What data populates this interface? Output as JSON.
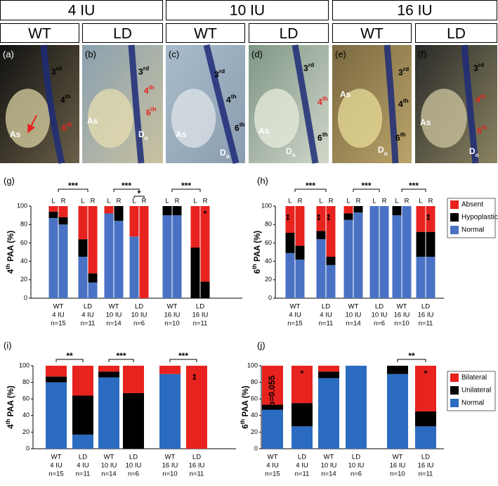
{
  "header": {
    "groups": [
      "4 IU",
      "10 IU",
      "16 IU"
    ],
    "subgroups": [
      "WT",
      "LD",
      "WT",
      "LD",
      "WT",
      "LD"
    ]
  },
  "panels": [
    {
      "letter": "(a)",
      "labels": [
        {
          "text": "3",
          "sup": "rd",
          "color": "#000000"
        },
        {
          "text": "4",
          "sup": "th",
          "color": "#000000"
        },
        {
          "text": "6",
          "sup": "th",
          "color": "#e8231f"
        },
        {
          "text": "As",
          "color": "#ffffff"
        }
      ]
    },
    {
      "letter": "(b)",
      "labels": [
        {
          "text": "3",
          "sup": "rd",
          "color": "#000000"
        },
        {
          "text": "4",
          "sup": "th",
          "color": "#e8231f"
        },
        {
          "text": "6",
          "sup": "th",
          "color": "#e8231f"
        },
        {
          "text": "As",
          "color": "#ffffff"
        },
        {
          "text": "D",
          "sub": "o",
          "color": "#ffffff"
        }
      ]
    },
    {
      "letter": "(c)",
      "labels": [
        {
          "text": "3",
          "sup": "rd",
          "color": "#000000"
        },
        {
          "text": "4",
          "sup": "th",
          "color": "#000000"
        },
        {
          "text": "6",
          "sup": "th",
          "color": "#000000"
        },
        {
          "text": "As",
          "color": "#ffffff"
        },
        {
          "text": "D",
          "sub": "o",
          "color": "#ffffff"
        }
      ]
    },
    {
      "letter": "(d)",
      "labels": [
        {
          "text": "3",
          "sup": "rd",
          "color": "#000000"
        },
        {
          "text": "4",
          "sup": "th",
          "color": "#e8231f"
        },
        {
          "text": "6",
          "sup": "th",
          "color": "#000000"
        },
        {
          "text": "As",
          "color": "#ffffff"
        },
        {
          "text": "D",
          "sub": "o",
          "color": "#ffffff"
        }
      ]
    },
    {
      "letter": "(e)",
      "labels": [
        {
          "text": "3",
          "sup": "rd",
          "color": "#000000"
        },
        {
          "text": "As",
          "color": "#ffffff"
        },
        {
          "text": "4",
          "sup": "th",
          "color": "#000000"
        },
        {
          "text": "6",
          "sup": "th",
          "color": "#000000"
        },
        {
          "text": "D",
          "sub": "o",
          "color": "#ffffff"
        }
      ]
    },
    {
      "letter": "(f)",
      "labels": [
        {
          "text": "3",
          "sup": "rd",
          "color": "#000000"
        },
        {
          "text": "4",
          "sup": "th",
          "color": "#e8231f"
        },
        {
          "text": "6",
          "sup": "th",
          "color": "#e8231f"
        },
        {
          "text": "As",
          "color": "#ffffff"
        },
        {
          "text": "D",
          "sub": "o",
          "color": "#ffffff"
        }
      ]
    }
  ],
  "chart_data": [
    {
      "type": "bar",
      "panel": "(g)",
      "ylabel": {
        "text": "4",
        "sup": "th",
        "rest": " PAA (%)"
      },
      "categories": [
        [
          "WT",
          "4 IU",
          "n=15"
        ],
        [
          "LD",
          "4 IU",
          "n=11"
        ],
        [
          "WT",
          "10 IU",
          "n=14"
        ],
        [
          "LD",
          "10 IU",
          "n=6"
        ],
        [
          "WT",
          "16 IU",
          "n=10"
        ],
        [
          "LD",
          "16 IU",
          "n=11"
        ]
      ],
      "sides": [
        "L",
        "R"
      ],
      "series": [
        {
          "color": "#4a72c4",
          "values": [
            [
              87,
              80
            ],
            [
              45,
              17
            ],
            [
              92,
              84
            ],
            [
              67,
              0
            ],
            [
              90,
              90
            ],
            [
              0,
              0
            ]
          ]
        },
        {
          "color": "#000000",
          "values": [
            [
              7,
              8
            ],
            [
              19,
              10
            ],
            [
              0,
              16
            ],
            [
              0,
              0
            ],
            [
              10,
              10
            ],
            [
              55,
              18
            ]
          ]
        },
        {
          "color": "#e8231f",
          "values": [
            [
              6,
              12
            ],
            [
              36,
              73
            ],
            [
              8,
              0
            ],
            [
              33,
              100
            ],
            [
              0,
              0
            ],
            [
              45,
              82
            ]
          ]
        }
      ],
      "ylim": [
        0,
        100
      ],
      "yticks": [
        0,
        20,
        40,
        60,
        80,
        100
      ],
      "pair_brackets": [
        "***",
        "***",
        "***"
      ],
      "side_brackets": [
        null,
        null,
        null,
        "*",
        null,
        null
      ],
      "bar_notes": [
        [
          null,
          null
        ],
        [
          null,
          null
        ],
        [
          null,
          null
        ],
        [
          null,
          null
        ],
        [
          null,
          null
        ],
        [
          null,
          "*"
        ]
      ]
    },
    {
      "type": "bar",
      "panel": "(h)",
      "ylabel": {
        "text": "6",
        "sup": "th",
        "rest": " PAA (%)"
      },
      "categories": [
        [
          "WT",
          "4 IU",
          "n=15"
        ],
        [
          "LD",
          "4 IU",
          "n=11"
        ],
        [
          "WT",
          "10 IU",
          "n=14"
        ],
        [
          "LD",
          "10 IU",
          "n=6"
        ],
        [
          "WT",
          "16 IU",
          "n=10"
        ],
        [
          "LD",
          "16 IU",
          "n=11"
        ]
      ],
      "sides": [
        "L",
        "R"
      ],
      "series": [
        {
          "name": "Normal",
          "color": "#4a72c4",
          "values": [
            [
              49,
              42
            ],
            [
              64,
              36
            ],
            [
              85,
              93
            ],
            [
              100,
              100
            ],
            [
              90,
              100
            ],
            [
              45,
              45
            ]
          ]
        },
        {
          "name": "Hypoplastic",
          "color": "#000000",
          "values": [
            [
              22,
              15
            ],
            [
              9,
              9
            ],
            [
              7,
              7
            ],
            [
              0,
              0
            ],
            [
              10,
              0
            ],
            [
              27,
              27
            ]
          ]
        },
        {
          "name": "Absent",
          "color": "#e8231f",
          "values": [
            [
              29,
              43
            ],
            [
              27,
              55
            ],
            [
              8,
              0
            ],
            [
              0,
              0
            ],
            [
              0,
              0
            ],
            [
              28,
              28
            ]
          ]
        }
      ],
      "ylim": [
        0,
        100
      ],
      "yticks": [
        0,
        20,
        40,
        60,
        80,
        100
      ],
      "pair_brackets": [
        "***",
        "***",
        "***"
      ],
      "bar_notes": [
        [
          "**",
          null
        ],
        [
          "**",
          "**"
        ],
        [
          null,
          null
        ],
        [
          null,
          null
        ],
        [
          null,
          null
        ],
        [
          null,
          "**"
        ]
      ],
      "legend": "right"
    },
    {
      "type": "bar",
      "panel": "(i)",
      "ylabel": {
        "text": "4",
        "sup": "th",
        "rest": " PAA (%)"
      },
      "categories": [
        [
          "WT",
          "4 IU",
          "n=15"
        ],
        [
          "LD",
          "4 IU",
          "n=11"
        ],
        [
          "WT",
          "10 IU",
          "n=14"
        ],
        [
          "LD",
          "10 IU",
          "n=6"
        ],
        [
          "WT",
          "16 IU",
          "n=10"
        ],
        [
          "LD",
          "16 IU",
          "n=11"
        ]
      ],
      "series": [
        {
          "color": "#2b6cc0",
          "values": [
            80,
            17,
            86,
            0,
            90,
            0
          ]
        },
        {
          "color": "#000000",
          "values": [
            7,
            47,
            7,
            67,
            0,
            0
          ]
        },
        {
          "color": "#e8231f",
          "values": [
            13,
            36,
            7,
            33,
            10,
            100
          ]
        }
      ],
      "ylim": [
        0,
        100
      ],
      "yticks": [
        0,
        20,
        40,
        60,
        80,
        100
      ],
      "pair_brackets": [
        "**",
        "***",
        "***"
      ],
      "bar_notes": [
        null,
        null,
        null,
        null,
        null,
        "**"
      ]
    },
    {
      "type": "bar",
      "panel": "(j)",
      "ylabel": {
        "text": "6",
        "sup": "th",
        "rest": " PAA (%)"
      },
      "categories": [
        [
          "WT",
          "4 IU",
          "n=15"
        ],
        [
          "LD",
          "4 IU",
          "n=11"
        ],
        [
          "WT",
          "10 IU",
          "n=14"
        ],
        [
          "LD",
          "10 IU",
          "n=6"
        ],
        [
          "WT",
          "16 IU",
          "n=10"
        ],
        [
          "LD",
          "16 IU",
          "n=11"
        ]
      ],
      "series": [
        {
          "name": "Normal",
          "color": "#2b6cc0",
          "values": [
            47,
            27,
            85,
            100,
            90,
            27
          ]
        },
        {
          "name": "Unilateral",
          "color": "#000000",
          "values": [
            6,
            28,
            8,
            0,
            10,
            18
          ]
        },
        {
          "name": "Bilateral",
          "color": "#e8231f",
          "values": [
            47,
            45,
            7,
            0,
            0,
            55
          ]
        }
      ],
      "ylim": [
        0,
        100
      ],
      "yticks": [
        0,
        20,
        40,
        60,
        80,
        100
      ],
      "pair_brackets": [
        null,
        null,
        "**"
      ],
      "bar_notes": [
        "p=0.055",
        "*",
        null,
        null,
        null,
        "*"
      ],
      "legend": "right"
    }
  ]
}
